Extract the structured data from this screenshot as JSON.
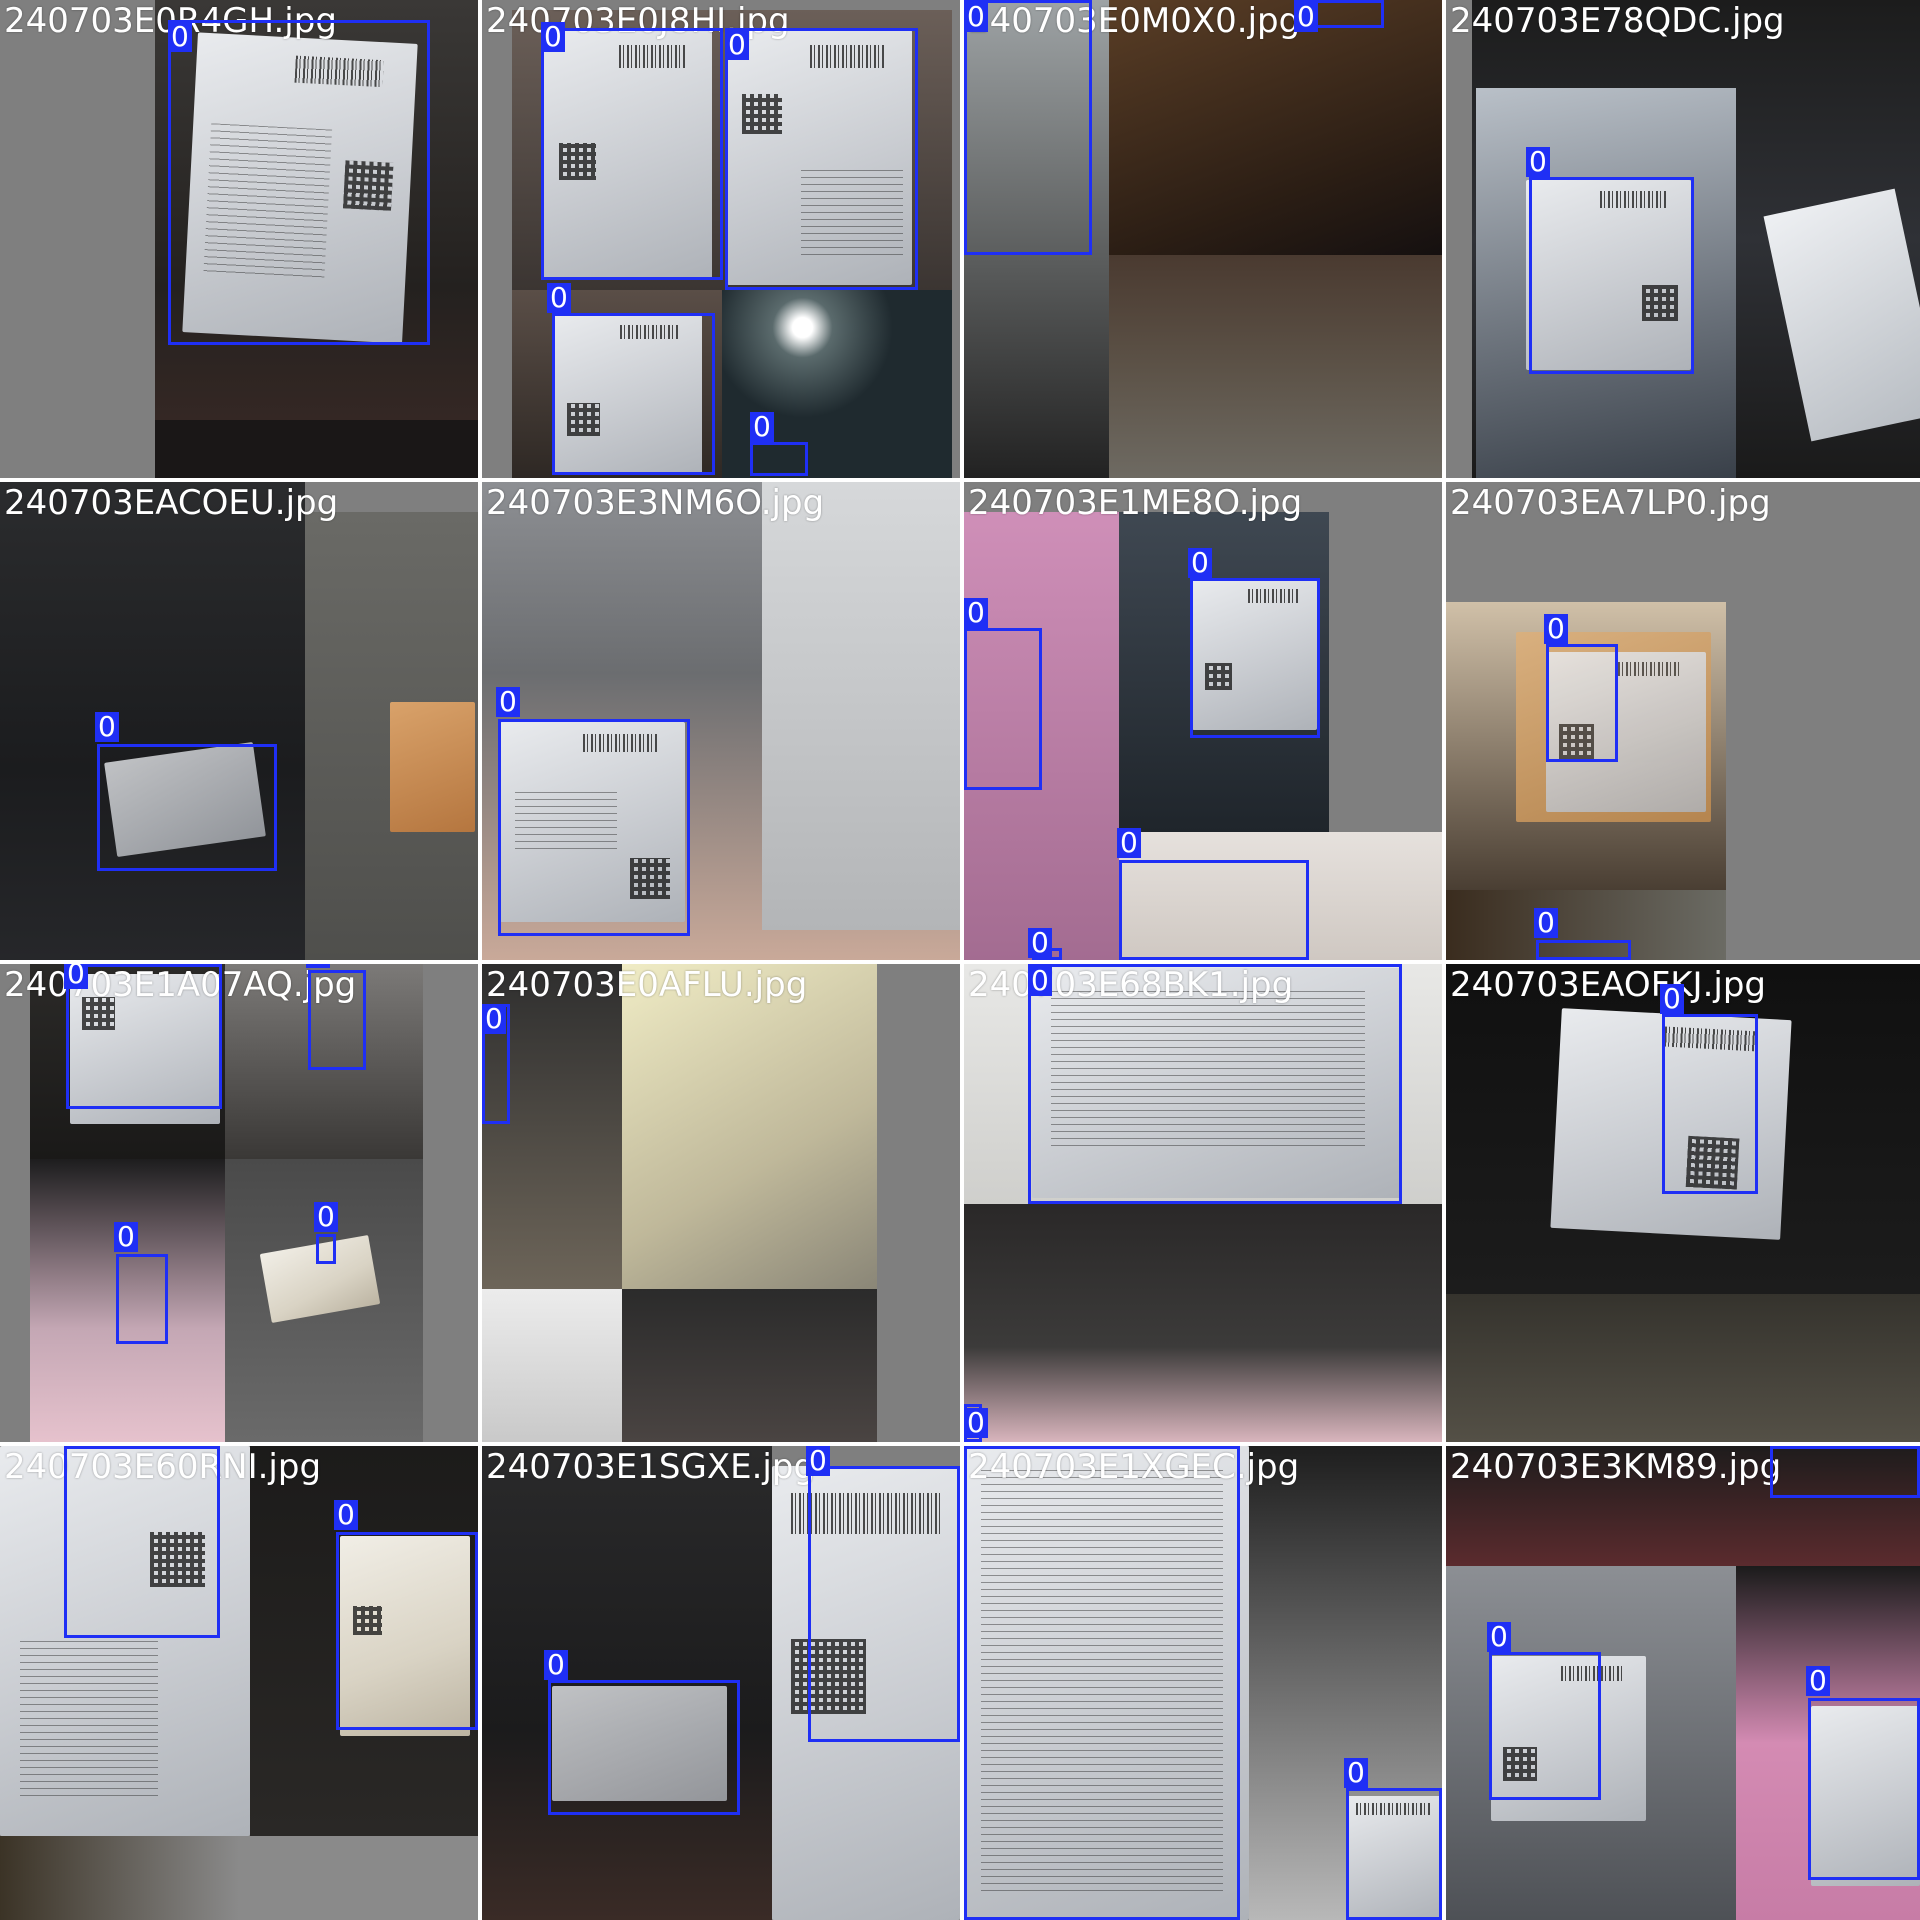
{
  "mosaic": {
    "box_color": "#1f2ff5",
    "tiles": [
      {
        "filename": "240703E0R4GH.jpg",
        "detections": [
          {
            "class_label": "0"
          }
        ]
      },
      {
        "filename": "240703E0J8HI.jpg",
        "detections": [
          {
            "class_label": "0"
          },
          {
            "class_label": "0"
          },
          {
            "class_label": "0"
          },
          {
            "class_label": "0"
          }
        ]
      },
      {
        "filename": "240703E0M0X0.jpg",
        "detections": [
          {
            "class_label": "0"
          },
          {
            "class_label": "0"
          }
        ]
      },
      {
        "filename": "240703E78QDC.jpg",
        "detections": [
          {
            "class_label": "0"
          }
        ]
      },
      {
        "filename": "240703EACOEU.jpg",
        "detections": [
          {
            "class_label": "0"
          }
        ]
      },
      {
        "filename": "240703E3NM6O.jpg",
        "detections": [
          {
            "class_label": "0"
          }
        ]
      },
      {
        "filename": "240703E1ME8O.jpg",
        "detections": [
          {
            "class_label": "0"
          },
          {
            "class_label": "0"
          },
          {
            "class_label": "0"
          },
          {
            "class_label": "0"
          }
        ]
      },
      {
        "filename": "240703EA7LP0.jpg",
        "detections": [
          {
            "class_label": "0"
          },
          {
            "class_label": "0"
          }
        ]
      },
      {
        "filename": "240703E1A07AQ.jpg",
        "detections": [
          {
            "class_label": "0"
          },
          {
            "class_label": "0"
          },
          {
            "class_label": "0"
          },
          {
            "class_label": "0"
          }
        ]
      },
      {
        "filename": "240703E0AFLU.jpg",
        "detections": [
          {
            "class_label": "0"
          }
        ]
      },
      {
        "filename": "240703E68BK1.jpg",
        "detections": [
          {
            "class_label": "0"
          },
          {
            "class_label": "0"
          }
        ]
      },
      {
        "filename": "240703EAOFKJ.jpg",
        "detections": [
          {
            "class_label": "0"
          }
        ]
      },
      {
        "filename": "240703E60RNI.jpg",
        "detections": [
          {
            "class_label": "0"
          },
          {
            "class_label": "0"
          }
        ]
      },
      {
        "filename": "240703E1SGXE.jpg",
        "detections": [
          {
            "class_label": "0"
          },
          {
            "class_label": "0"
          }
        ]
      },
      {
        "filename": "240703E1XGEC.jpg",
        "detections": [
          {
            "class_label": "0"
          },
          {
            "class_label": "0"
          }
        ]
      },
      {
        "filename": "240703E3KM89.jpg",
        "detections": [
          {
            "class_label": "0"
          },
          {
            "class_label": "0"
          },
          {
            "class_label": "0"
          }
        ]
      }
    ]
  }
}
